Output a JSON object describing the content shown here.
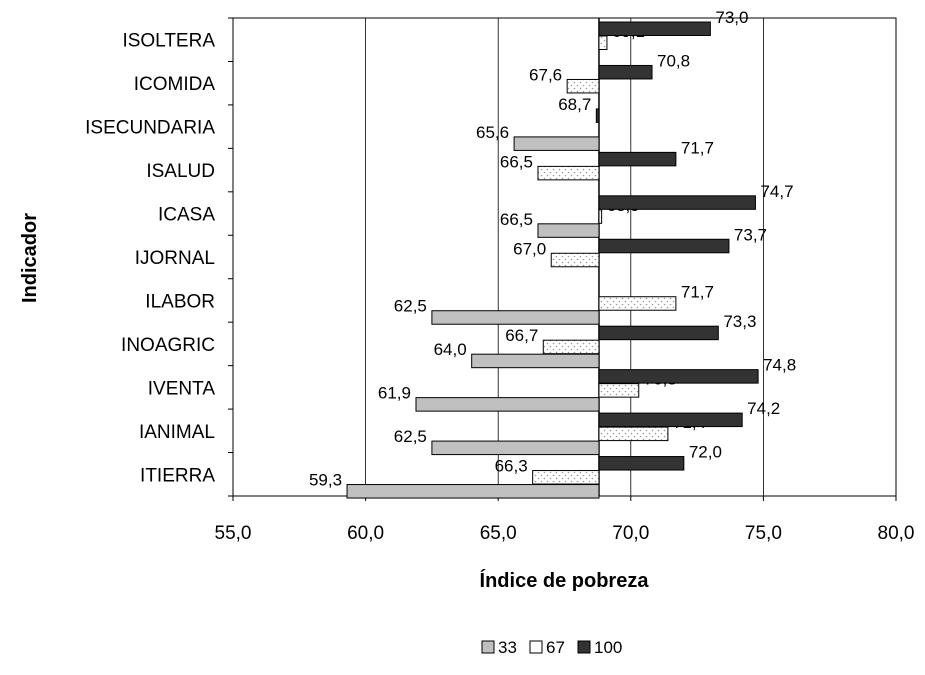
{
  "chart_data": {
    "type": "bar",
    "orientation": "horizontal",
    "title": "",
    "xlabel": "Índice de pobreza",
    "ylabel": "Indicador",
    "xlim": [
      55,
      80
    ],
    "xticks": [
      55,
      60,
      65,
      70,
      75,
      80
    ],
    "xtick_labels": [
      "55,0",
      "60,0",
      "65,0",
      "70,0",
      "75,0",
      "80,0"
    ],
    "baseline": 68.8,
    "grid": "vertical",
    "legend_position": "bottom",
    "categories": [
      "ISOLTERA",
      "ICOMIDA",
      "ISECUNDARIA",
      "ISALUD",
      "ICASA",
      "IJORNAL",
      "ILABOR",
      "INOAGRIC",
      "IVENTA",
      "IANIMAL",
      "ITIERRA"
    ],
    "series": [
      {
        "name": "33",
        "color": "#c0c0c0",
        "pattern": "solid",
        "values": [
          null,
          null,
          65.6,
          null,
          66.5,
          null,
          62.5,
          64.0,
          61.9,
          62.5,
          59.3
        ],
        "labels": [
          "",
          "",
          "65,6",
          "",
          "66,5",
          "",
          "62,5",
          "64,0",
          "61,9",
          "62,5",
          "59,3"
        ]
      },
      {
        "name": "67",
        "color": "#ffffff",
        "pattern": "dotted",
        "values": [
          69.1,
          67.6,
          null,
          66.5,
          68.9,
          67.0,
          71.7,
          66.7,
          70.3,
          71.4,
          66.3
        ],
        "labels": [
          "69,1",
          "67,6",
          "",
          "66,5",
          "68,9",
          "67,0",
          "71,7",
          "66,7",
          "70,3",
          "71,4",
          "66,3"
        ]
      },
      {
        "name": "100",
        "color": "#333333",
        "pattern": "solid",
        "values": [
          73.0,
          70.8,
          68.7,
          71.7,
          74.7,
          73.7,
          null,
          73.3,
          74.8,
          74.2,
          72.0
        ],
        "labels": [
          "73,0",
          "70,8",
          "68,7",
          "71,7",
          "74,7",
          "73,7",
          "",
          "73,3",
          "74,8",
          "74,2",
          "72,0"
        ]
      }
    ]
  }
}
